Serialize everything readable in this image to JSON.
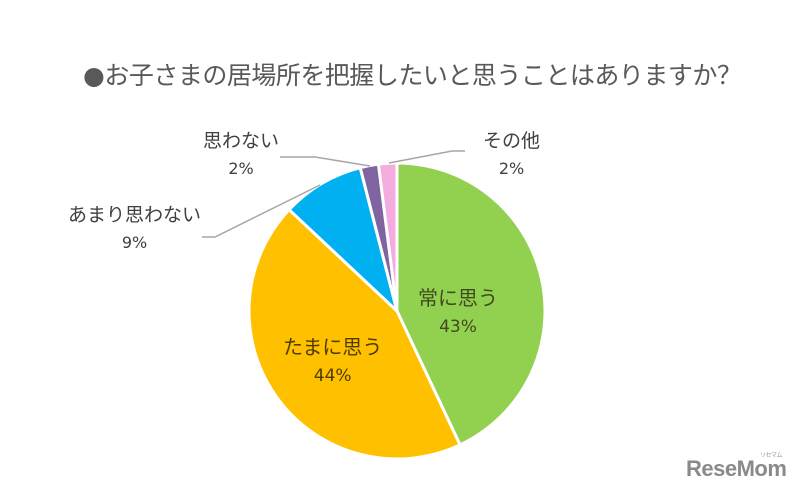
{
  "chart_data": {
    "type": "pie",
    "title": "●お子さまの居場所を把握したいと思うことはありますか？",
    "start_angle": "12 o'clock, clockwise",
    "slices": [
      {
        "label": "常に思う",
        "value": 43,
        "display": "43%",
        "color": "#92D050"
      },
      {
        "label": "たまに思う",
        "value": 44,
        "display": "44%",
        "color": "#FFC000"
      },
      {
        "label": "あまり思わない",
        "value": 9,
        "display": "9%",
        "color": "#00B0F0"
      },
      {
        "label": "思わない",
        "value": 2,
        "display": "2%",
        "color": "#8064A2"
      },
      {
        "label": "その他",
        "value": 2,
        "display": "2%",
        "color": "#F4ACDF"
      }
    ],
    "legend": "none (data labels with leader lines)"
  },
  "watermark": {
    "text": "ReseMom",
    "sub": "リセマム"
  }
}
